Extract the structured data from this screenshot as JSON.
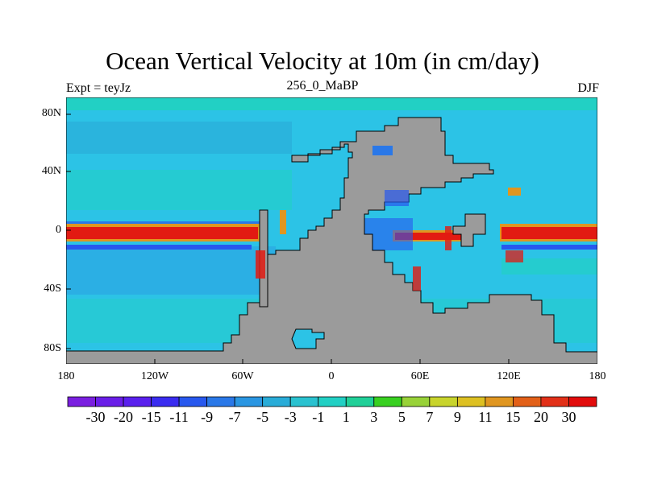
{
  "title": "Ocean Vertical Velocity at 10m (in cm/day)",
  "experiment_label": "Expt = teyJz",
  "case_label": "256_0_MaBP",
  "season_label": "DJF",
  "axes": {
    "y_ticks": [
      "80N",
      "40N",
      "0",
      "40S",
      "80S"
    ],
    "x_ticks": [
      "180",
      "120W",
      "60W",
      "0",
      "60E",
      "120E",
      "180"
    ]
  },
  "colorbar": {
    "labels": [
      "-30",
      "-20",
      "-15",
      "-11",
      "-9",
      "-7",
      "-5",
      "-3",
      "-1",
      "1",
      "3",
      "5",
      "7",
      "9",
      "11",
      "15",
      "20",
      "30"
    ],
    "colors": [
      "#7a1fe0",
      "#6a1ee8",
      "#5a20ee",
      "#3a2cf0",
      "#2858ee",
      "#2a78e8",
      "#2a96e2",
      "#29acd8",
      "#2ac2d0",
      "#22d0c4",
      "#20d098",
      "#38d020",
      "#98d238",
      "#c8d42c",
      "#ddc022",
      "#e09620",
      "#e26018",
      "#e23018",
      "#e20c0c"
    ]
  },
  "map_colors": {
    "land": "#9b9b9b",
    "ocean_background": "#2cc3e6",
    "equatorial_upwelling": "#e21a12"
  }
}
